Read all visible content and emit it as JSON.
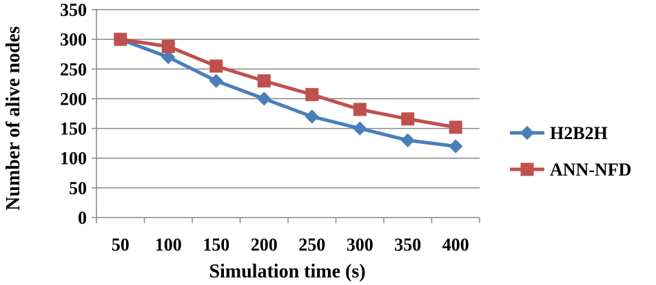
{
  "chart_data": {
    "type": "line",
    "categories": [
      "50",
      "100",
      "150",
      "200",
      "250",
      "300",
      "350",
      "400"
    ],
    "series": [
      {
        "name": "H2B2H",
        "values": [
          300,
          270,
          230,
          200,
          170,
          150,
          130,
          120
        ],
        "color": "#4a7ebb",
        "marker": "diamond"
      },
      {
        "name": "ANN-NFD",
        "values": [
          300,
          288,
          255,
          230,
          207,
          182,
          166,
          152
        ],
        "color": "#c0504d",
        "marker": "square"
      }
    ],
    "yticks": [
      "0",
      "50",
      "100",
      "150",
      "200",
      "250",
      "300",
      "350"
    ],
    "ylim": [
      0,
      350
    ],
    "xlabel": "Simulation time (s)",
    "ylabel": "Number of alive nodes",
    "grid": "horizontal",
    "legend_position": "right",
    "colors": {
      "grid": "#878787",
      "axis": "#878787"
    }
  }
}
